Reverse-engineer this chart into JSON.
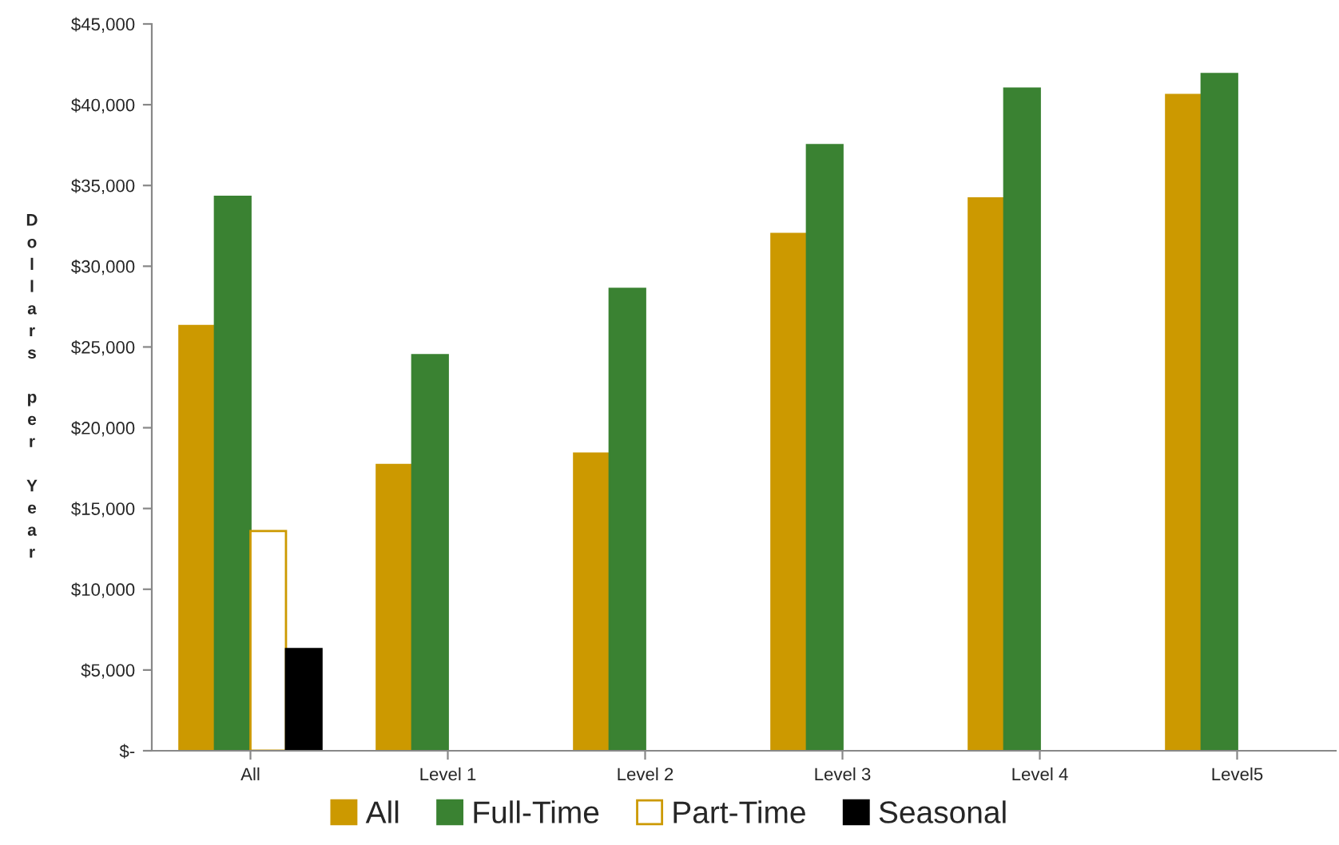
{
  "chart_data": {
    "type": "bar",
    "ylabel": "Dollars per Year",
    "categories": [
      "All",
      "Level 1",
      "Level 2",
      "Level 3",
      "Level 4",
      "Level5"
    ],
    "series": [
      {
        "name": "All",
        "color": "#cc9900",
        "values": [
          26300,
          17700,
          18400,
          32000,
          34200,
          40600
        ]
      },
      {
        "name": "Full-Time",
        "color": "#3a8232",
        "values": [
          34300,
          24500,
          28600,
          37500,
          41000,
          41900
        ]
      },
      {
        "name": "Part-Time",
        "color": "#ffffff",
        "values": [
          13600,
          null,
          null,
          null,
          null,
          null
        ]
      },
      {
        "name": "Seasonal",
        "color": "#000000",
        "values": [
          6300,
          null,
          null,
          null,
          null,
          null
        ]
      }
    ],
    "ylim": [
      0,
      45000
    ],
    "yticks": [
      {
        "value": 0,
        "label": "$-"
      },
      {
        "value": 5000,
        "label": "$5,000"
      },
      {
        "value": 10000,
        "label": "$10,000"
      },
      {
        "value": 15000,
        "label": "$15,000"
      },
      {
        "value": 20000,
        "label": "$20,000"
      },
      {
        "value": 25000,
        "label": "$25,000"
      },
      {
        "value": 30000,
        "label": "$30,000"
      },
      {
        "value": 35000,
        "label": "$35,000"
      },
      {
        "value": 40000,
        "label": "$40,000"
      },
      {
        "value": 45000,
        "label": "$45,000"
      }
    ],
    "grid": false,
    "legend": "bottom"
  }
}
